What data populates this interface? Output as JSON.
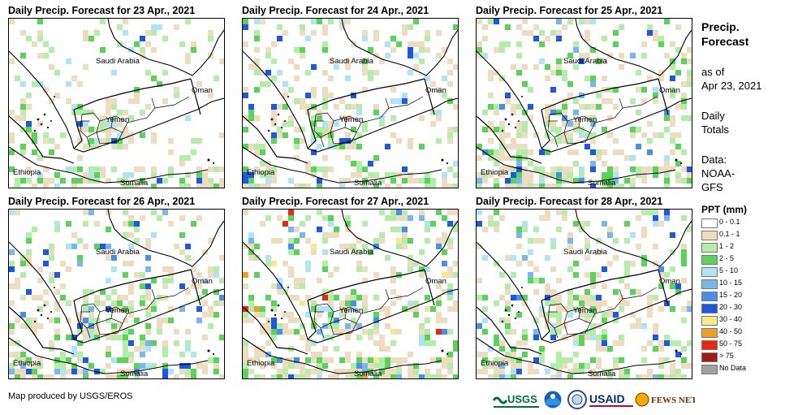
{
  "panels": [
    {
      "title": "Daily Precip. Forecast for 23 Apr., 2021",
      "intensity": 1
    },
    {
      "title": "Daily Precip. Forecast for 24 Apr., 2021",
      "intensity": 2
    },
    {
      "title": "Daily Precip. Forecast for 25 Apr., 2021",
      "intensity": 3
    },
    {
      "title": "Daily Precip. Forecast for 26 Apr., 2021",
      "intensity": 3
    },
    {
      "title": "Daily Precip. Forecast for 27 Apr., 2021",
      "intensity": 4
    },
    {
      "title": "Daily Precip. Forecast for 28 Apr., 2021",
      "intensity": 3
    }
  ],
  "countries": {
    "saudi": "Saudi Arabia",
    "oman": "Oman",
    "yemen": "Yemen",
    "ethiopia": "Ethiopia",
    "somalia": "Somalia"
  },
  "side": {
    "title1": "Precip.",
    "title2": "Forecast",
    "asof1": "as of",
    "asof2": "Apr 23, 2021",
    "daily1": "Daily",
    "daily2": "Totals",
    "data1": "Data:",
    "data2": "NOAA-",
    "data3": "GFS"
  },
  "legend": {
    "title": "PPT (mm)",
    "items": [
      {
        "label": "0 - 0.1",
        "color": "#ffffff"
      },
      {
        "label": "0.1 - 1",
        "color": "#ecdcc0"
      },
      {
        "label": "1 - 2",
        "color": "#b4ecaa"
      },
      {
        "label": "2 - 5",
        "color": "#5cd25a"
      },
      {
        "label": "5 - 10",
        "color": "#b0e4f4"
      },
      {
        "label": "10 - 15",
        "color": "#78b6ec"
      },
      {
        "label": "15 - 20",
        "color": "#4a8ee6"
      },
      {
        "label": "20 - 30",
        "color": "#1e58dc"
      },
      {
        "label": "30 - 40",
        "color": "#f4e890"
      },
      {
        "label": "40 - 50",
        "color": "#f0a020"
      },
      {
        "label": "50 - 75",
        "color": "#e8280c"
      },
      {
        "label": "> 75",
        "color": "#a01818"
      },
      {
        "label": "No Data",
        "color": "#a0a0a0"
      }
    ]
  },
  "credit": "Map produced by USGS/EROS",
  "logos": {
    "usgs": "USGS",
    "usaid": "USAID",
    "fews": "FEWS NET"
  }
}
